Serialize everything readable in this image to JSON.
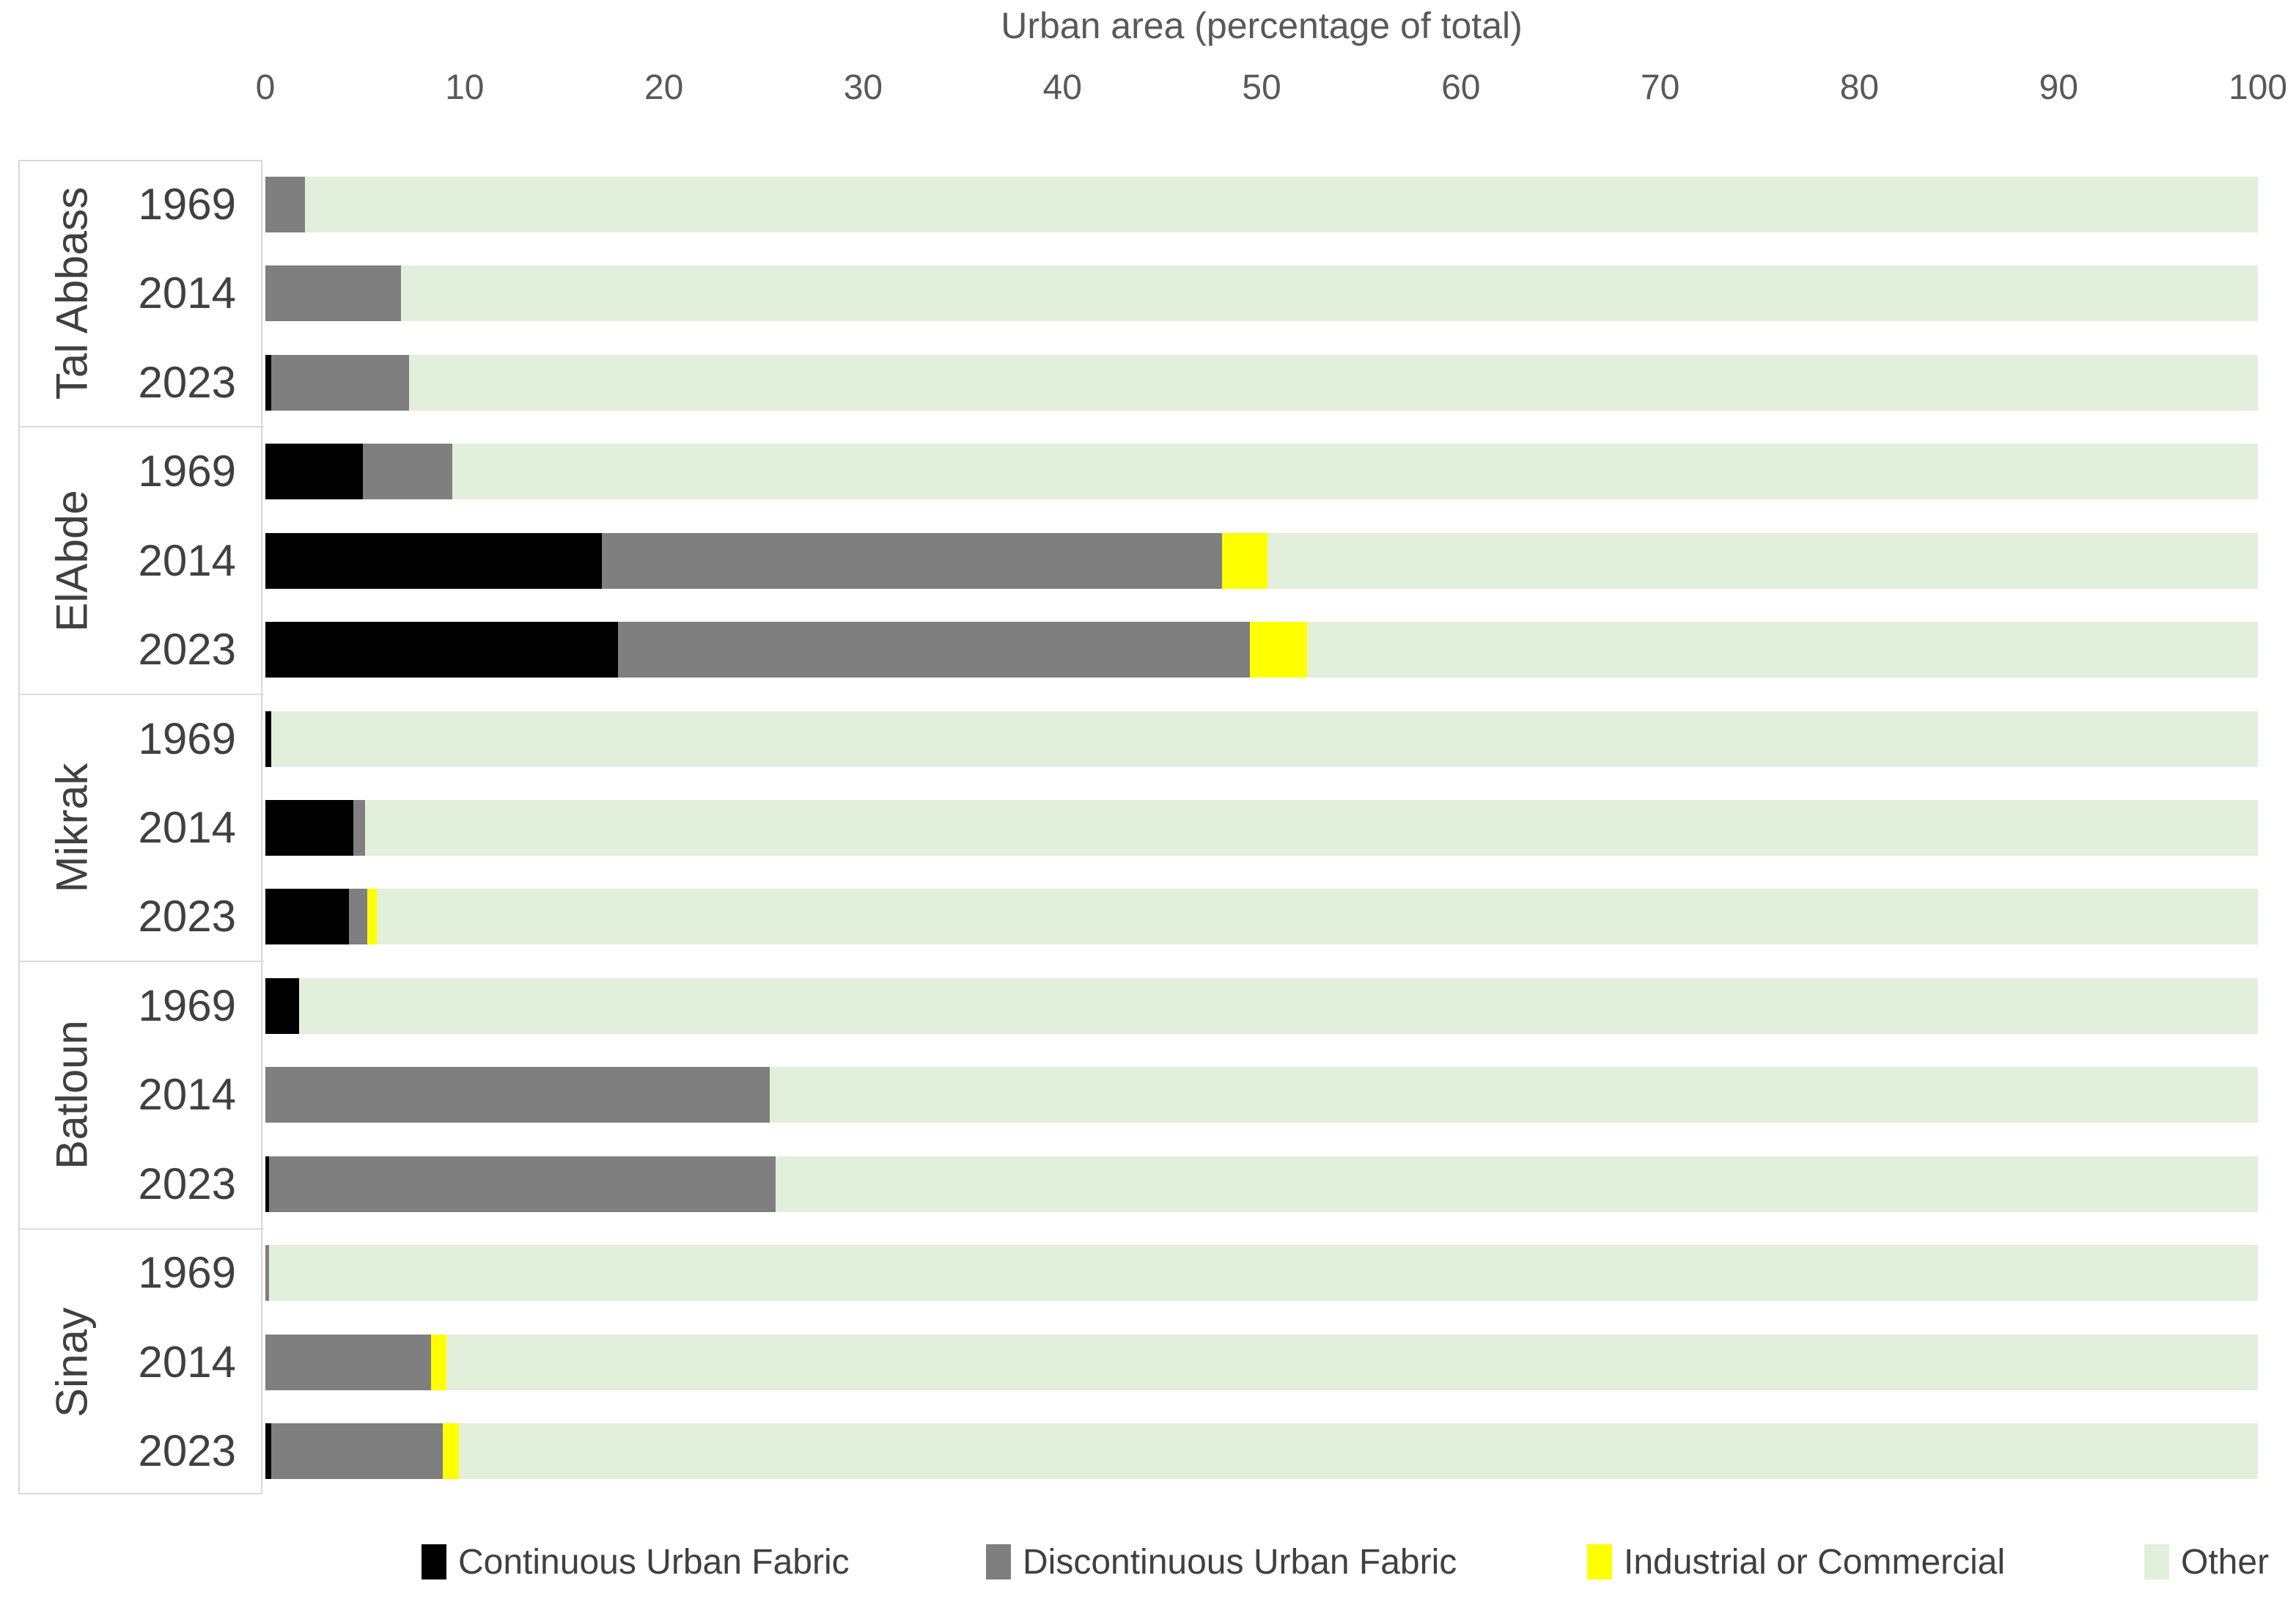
{
  "title": "Urban area (percentage of total)",
  "x_axis": {
    "label": "Urban area (percentage of total)",
    "ticks": [
      0,
      10,
      20,
      30,
      40,
      50,
      60,
      70,
      80,
      90,
      100
    ]
  },
  "legend": [
    {
      "label": "Continuous Urban Fabric",
      "color": "#000000"
    },
    {
      "label": "Discontinuous Urban Fabric",
      "color": "#7f7f7f"
    },
    {
      "label": "Industrial or Commercial",
      "color": "#ffff00"
    },
    {
      "label": "Other",
      "color": "#e2efda"
    }
  ],
  "chart_data": {
    "type": "bar",
    "orientation": "horizontal",
    "stacked": true,
    "normalized_percent": true,
    "title": "Urban area (percentage of total)",
    "xlabel": "Urban area (percentage of total)",
    "xlim": [
      0,
      100
    ],
    "grid": false,
    "legend_position": "bottom",
    "series_names": [
      "Continuous Urban Fabric",
      "Discontinuous Urban Fabric",
      "Industrial or Commercial",
      "Other"
    ],
    "series_colors": [
      "#000000",
      "#7f7f7f",
      "#ffff00",
      "#e2efda"
    ],
    "groups": [
      {
        "name": "Tal Abbass",
        "rows": [
          {
            "year": "1969",
            "values": [
              0,
              2.0,
              0,
              98.0
            ]
          },
          {
            "year": "2014",
            "values": [
              0,
              6.8,
              0,
              93.2
            ]
          },
          {
            "year": "2023",
            "values": [
              0.3,
              6.9,
              0,
              92.8
            ]
          }
        ]
      },
      {
        "name": "ElAbde",
        "rows": [
          {
            "year": "1969",
            "values": [
              4.9,
              4.5,
              0,
              90.6
            ]
          },
          {
            "year": "2014",
            "values": [
              16.9,
              31.1,
              2.3,
              49.7
            ]
          },
          {
            "year": "2023",
            "values": [
              17.7,
              31.7,
              2.9,
              47.7
            ]
          }
        ]
      },
      {
        "name": "Mikrak",
        "rows": [
          {
            "year": "1969",
            "values": [
              0.3,
              0,
              0,
              99.7
            ]
          },
          {
            "year": "2014",
            "values": [
              4.4,
              0.6,
              0,
              95.0
            ]
          },
          {
            "year": "2023",
            "values": [
              4.2,
              0.9,
              0.5,
              94.4
            ]
          }
        ]
      },
      {
        "name": "Batloun",
        "rows": [
          {
            "year": "1969",
            "values": [
              1.7,
              0,
              0,
              98.3
            ]
          },
          {
            "year": "2014",
            "values": [
              0,
              25.3,
              0,
              74.7
            ]
          },
          {
            "year": "2023",
            "values": [
              0.2,
              25.4,
              0,
              74.4
            ]
          }
        ]
      },
      {
        "name": "Sinay",
        "rows": [
          {
            "year": "1969",
            "values": [
              0,
              0.2,
              0,
              99.8
            ]
          },
          {
            "year": "2014",
            "values": [
              0,
              8.3,
              0.8,
              90.9
            ]
          },
          {
            "year": "2023",
            "values": [
              0.3,
              8.6,
              0.8,
              90.3
            ]
          }
        ]
      }
    ]
  }
}
